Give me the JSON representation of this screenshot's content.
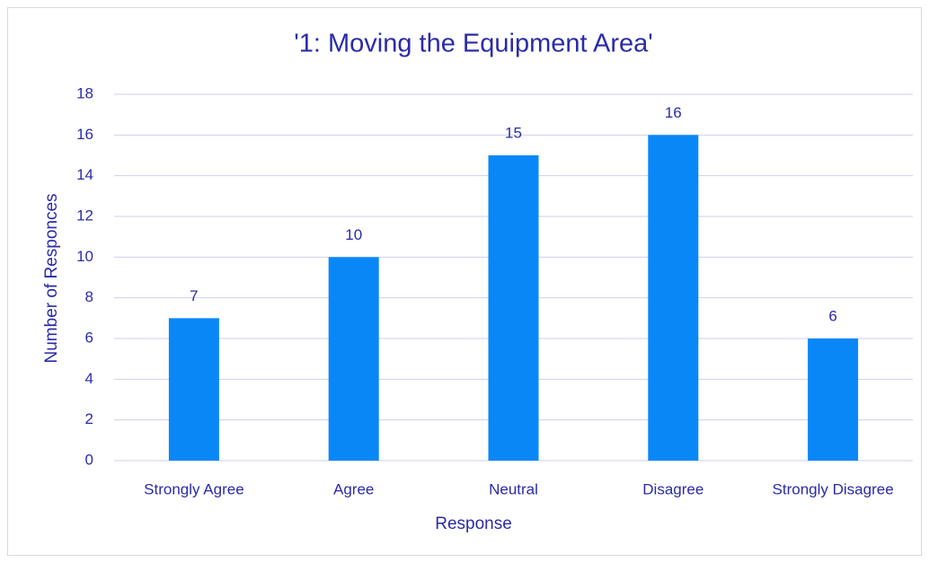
{
  "chart_data": {
    "type": "bar",
    "title": "'1: Moving the Equipment Area'",
    "x_label": "Response",
    "y_label": "Number of Responces",
    "categories": [
      "Strongly Agree",
      "Agree",
      "Neutral",
      "Disagree",
      "Strongly Disagree"
    ],
    "values": [
      7,
      10,
      15,
      16,
      6
    ],
    "color": "#0a87f7",
    "ylim": [
      0,
      18
    ],
    "yticks": [
      0,
      2,
      4,
      6,
      8,
      10,
      12,
      14,
      16,
      18
    ],
    "grid": true
  }
}
